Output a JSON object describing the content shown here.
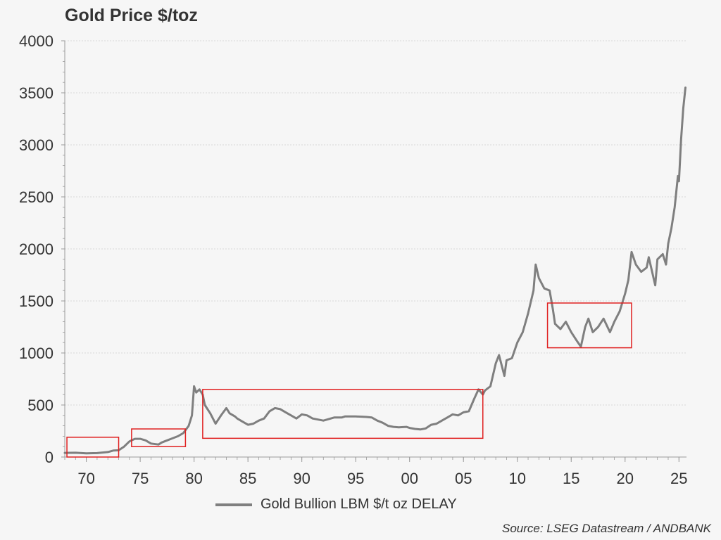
{
  "chart_data": {
    "type": "line",
    "title": "Gold Price $/toz",
    "source": "Source: LSEG Datastream / ANDBANK",
    "legend": {
      "label": "Gold Bullion LBM $/t oz DELAY",
      "placement": "bottom-center"
    },
    "ylim": [
      0,
      4000
    ],
    "xlim": [
      1968,
      2025.7
    ],
    "y_ticks": [
      "0",
      "500",
      "1000",
      "1500",
      "2000",
      "2500",
      "3000",
      "3500",
      "4000"
    ],
    "x_ticks": [
      {
        "label": "70",
        "value": 1970
      },
      {
        "label": "75",
        "value": 1975
      },
      {
        "label": "80",
        "value": 1980
      },
      {
        "label": "85",
        "value": 1985
      },
      {
        "label": "90",
        "value": 1990
      },
      {
        "label": "95",
        "value": 1995
      },
      {
        "label": "00",
        "value": 2000
      },
      {
        "label": "05",
        "value": 2005
      },
      {
        "label": "10",
        "value": 2010
      },
      {
        "label": "15",
        "value": 2015
      },
      {
        "label": "20",
        "value": 2020
      },
      {
        "label": "25",
        "value": 2025
      }
    ],
    "grid": true,
    "colors": {
      "series": "#7f7f7f",
      "highlight": "#e02020",
      "grid": "#d8d8d8",
      "axis": "#999999"
    },
    "series": [
      {
        "name": "Gold Bullion LBM $/t oz DELAY",
        "x": [
          1968.0,
          1969.0,
          1970.0,
          1971.0,
          1972.0,
          1972.5,
          1973.0,
          1973.5,
          1974.0,
          1974.5,
          1975.0,
          1975.5,
          1976.0,
          1976.7,
          1977.0,
          1977.5,
          1978.0,
          1978.5,
          1979.0,
          1979.5,
          1979.8,
          1980.0,
          1980.2,
          1980.5,
          1980.8,
          1981.0,
          1981.5,
          1982.0,
          1982.5,
          1983.0,
          1983.3,
          1983.8,
          1984.0,
          1984.5,
          1985.0,
          1985.5,
          1986.0,
          1986.5,
          1987.0,
          1987.5,
          1988.0,
          1988.5,
          1989.0,
          1989.5,
          1990.0,
          1990.5,
          1991.0,
          1992.0,
          1993.0,
          1993.7,
          1994.0,
          1995.0,
          1996.0,
          1996.5,
          1997.0,
          1997.5,
          1998.0,
          1998.5,
          1999.0,
          1999.7,
          2000.0,
          2000.5,
          2001.0,
          2001.5,
          2002.0,
          2002.5,
          2003.0,
          2003.5,
          2004.0,
          2004.5,
          2005.0,
          2005.5,
          2006.0,
          2006.4,
          2006.8,
          2007.0,
          2007.5,
          2008.0,
          2008.3,
          2008.8,
          2009.0,
          2009.5,
          2010.0,
          2010.5,
          2011.0,
          2011.5,
          2011.7,
          2012.0,
          2012.5,
          2013.0,
          2013.3,
          2013.5,
          2014.0,
          2014.5,
          2015.0,
          2015.5,
          2015.9,
          2016.3,
          2016.6,
          2017.0,
          2017.5,
          2018.0,
          2018.6,
          2019.0,
          2019.5,
          2020.0,
          2020.3,
          2020.6,
          2021.0,
          2021.5,
          2022.0,
          2022.2,
          2022.8,
          2023.0,
          2023.5,
          2023.8,
          2024.0,
          2024.3,
          2024.6,
          2024.9,
          2025.0,
          2025.2,
          2025.4,
          2025.6
        ],
        "values": [
          40,
          41,
          36,
          38,
          48,
          62,
          65,
          100,
          150,
          175,
          175,
          160,
          130,
          120,
          140,
          160,
          180,
          200,
          230,
          300,
          400,
          680,
          620,
          650,
          600,
          500,
          420,
          320,
          400,
          470,
          420,
          390,
          370,
          340,
          310,
          320,
          350,
          370,
          440,
          470,
          460,
          430,
          400,
          370,
          410,
          400,
          370,
          350,
          380,
          380,
          390,
          390,
          385,
          380,
          350,
          330,
          300,
          290,
          285,
          290,
          280,
          270,
          265,
          275,
          310,
          320,
          350,
          380,
          410,
          400,
          430,
          440,
          560,
          650,
          600,
          640,
          680,
          900,
          980,
          780,
          930,
          950,
          1100,
          1200,
          1380,
          1600,
          1850,
          1720,
          1620,
          1600,
          1420,
          1280,
          1230,
          1300,
          1200,
          1120,
          1060,
          1250,
          1330,
          1200,
          1250,
          1330,
          1200,
          1300,
          1400,
          1570,
          1700,
          1970,
          1850,
          1780,
          1820,
          1920,
          1650,
          1900,
          1950,
          1850,
          2050,
          2200,
          2400,
          2700,
          2650,
          3050,
          3350,
          3550
        ]
      }
    ],
    "highlight_boxes": [
      {
        "x_range": [
          1968.2,
          1973.0
        ],
        "y_range": [
          0,
          190
        ]
      },
      {
        "x_range": [
          1974.2,
          1979.2
        ],
        "y_range": [
          100,
          270
        ]
      },
      {
        "x_range": [
          1980.8,
          2006.8
        ],
        "y_range": [
          180,
          650
        ]
      },
      {
        "x_range": [
          2012.8,
          2020.6
        ],
        "y_range": [
          1050,
          1480
        ]
      }
    ]
  }
}
